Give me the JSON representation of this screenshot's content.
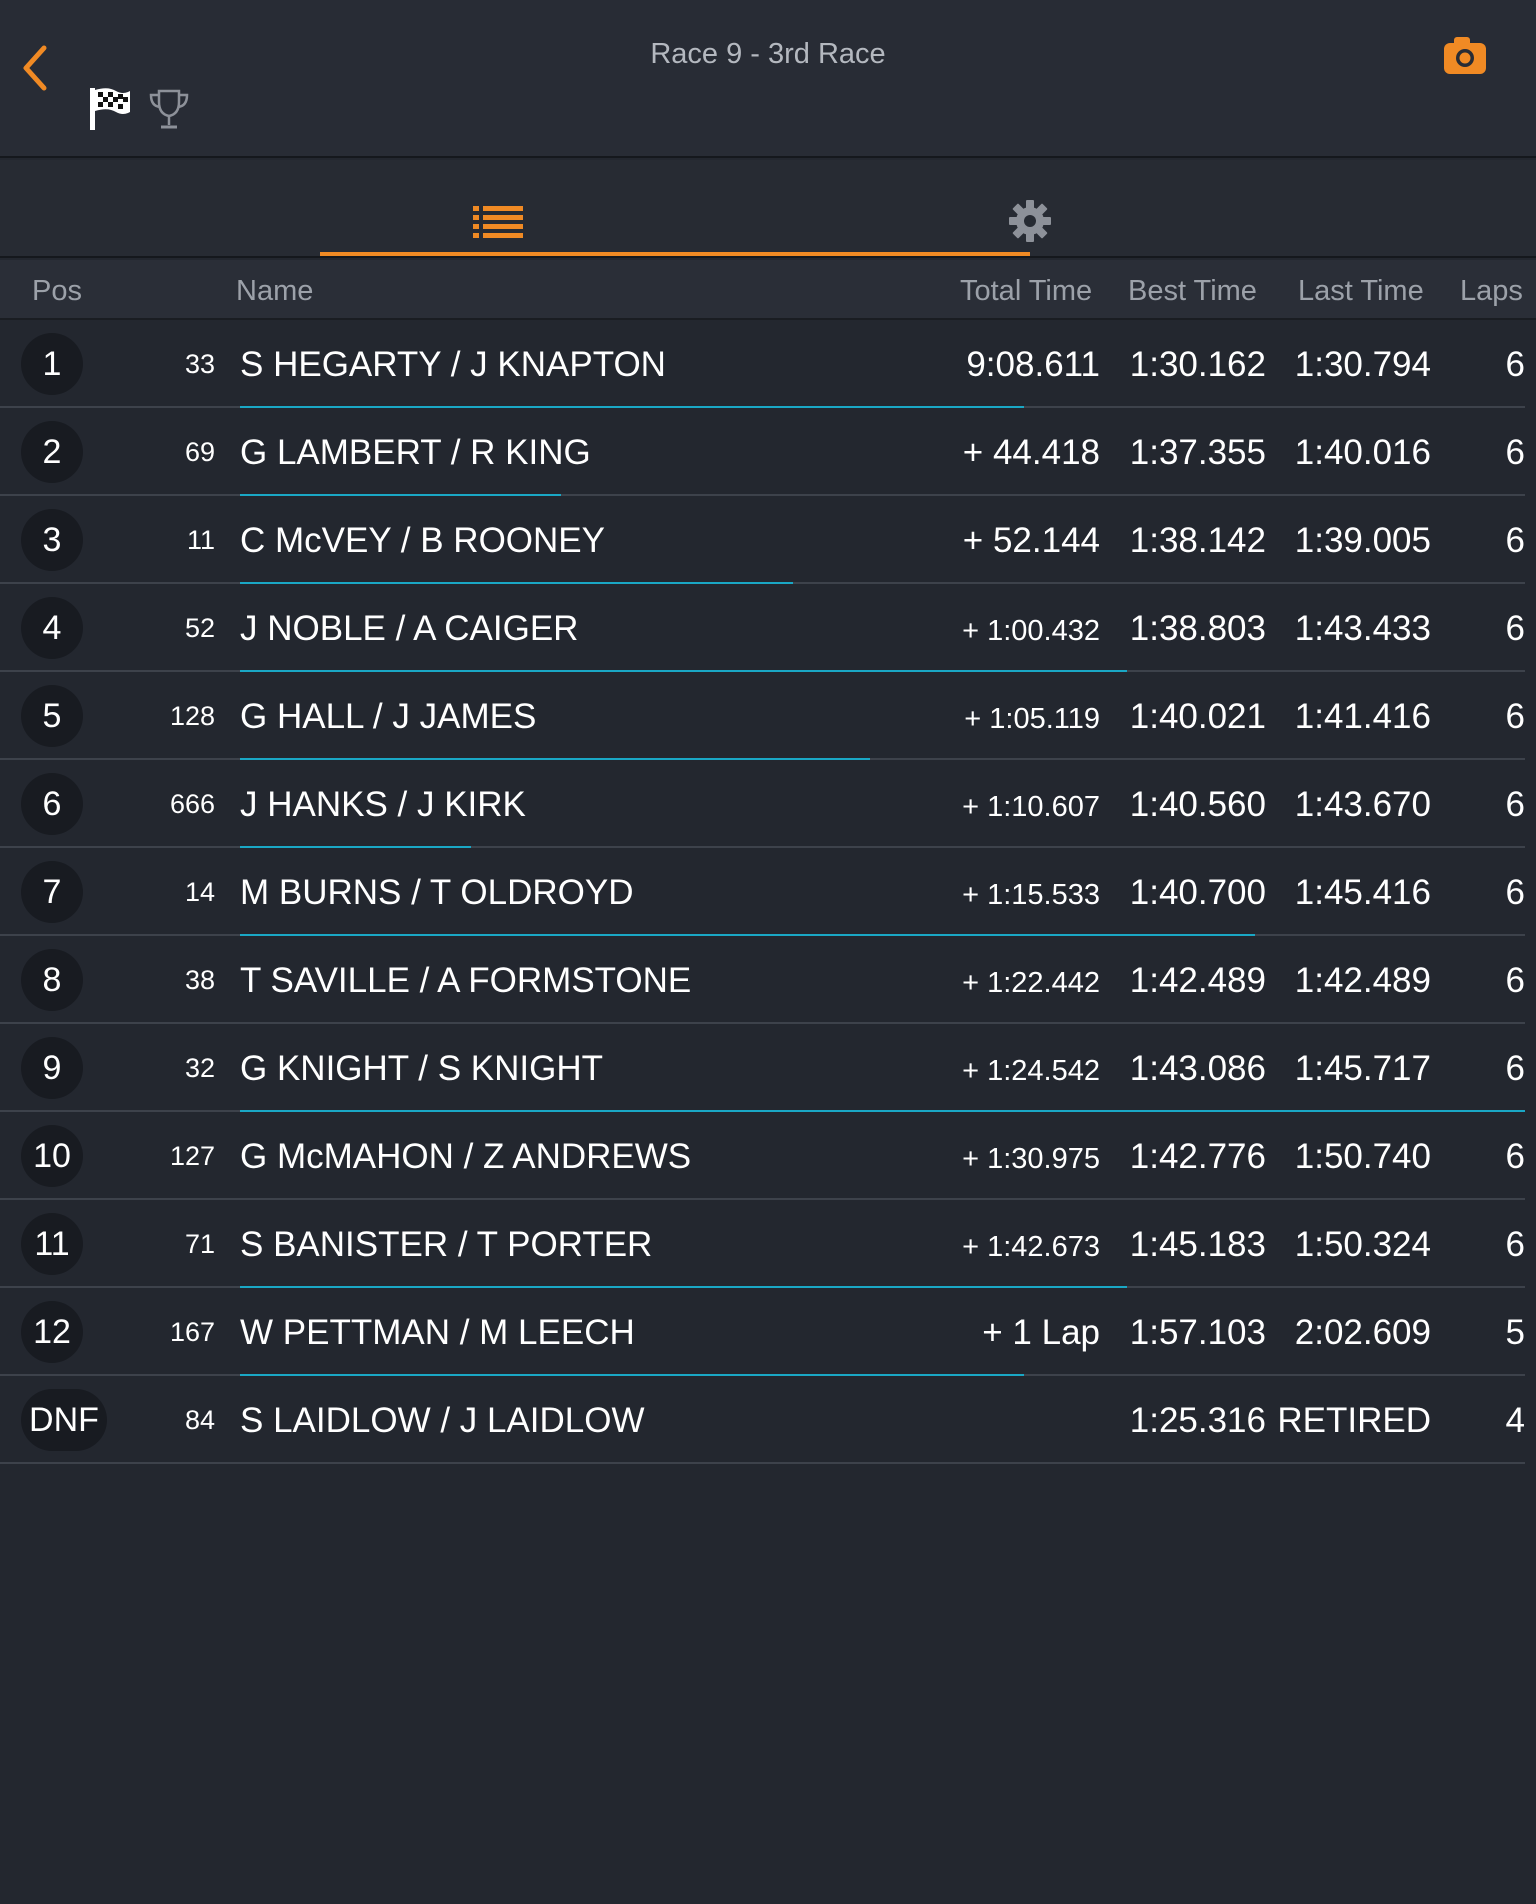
{
  "header": {
    "title": "Race 9 - 3rd Race",
    "accent_color": "#f08a24",
    "icons": [
      "back-chevron-icon",
      "checkered-flag-icon",
      "trophy-icon",
      "camera-icon"
    ]
  },
  "tabs": [
    {
      "icon": "list-icon",
      "active": true
    },
    {
      "icon": "gear-icon",
      "active": false
    }
  ],
  "columns": {
    "pos": "Pos",
    "name": "Name",
    "total": "Total Time",
    "best": "Best Time",
    "last": "Last Time",
    "laps": "Laps"
  },
  "progress_bar_color": "#1aa7c5",
  "results": [
    {
      "pos": "1",
      "number": "33",
      "name": "S HEGARTY / J KNAPTON",
      "total": "9:08.611",
      "best": "1:30.162",
      "last": "1:30.794",
      "laps": "6",
      "bar_fraction": 0.61
    },
    {
      "pos": "2",
      "number": "69",
      "name": "G LAMBERT / R KING",
      "total": "+ 44.418",
      "best": "1:37.355",
      "last": "1:40.016",
      "laps": "6",
      "bar_fraction": 0.25
    },
    {
      "pos": "3",
      "number": "11",
      "name": "C McVEY / B ROONEY",
      "total": "+ 52.144",
      "best": "1:38.142",
      "last": "1:39.005",
      "laps": "6",
      "bar_fraction": 0.43
    },
    {
      "pos": "4",
      "number": "52",
      "name": "J NOBLE / A CAIGER",
      "total": "+ 1:00.432",
      "best": "1:38.803",
      "last": "1:43.433",
      "laps": "6",
      "bar_fraction": 0.69
    },
    {
      "pos": "5",
      "number": "128",
      "name": "G HALL / J JAMES",
      "total": "+ 1:05.119",
      "best": "1:40.021",
      "last": "1:41.416",
      "laps": "6",
      "bar_fraction": 0.49
    },
    {
      "pos": "6",
      "number": "666",
      "name": "J HANKS / J KIRK",
      "total": "+ 1:10.607",
      "best": "1:40.560",
      "last": "1:43.670",
      "laps": "6",
      "bar_fraction": 0.18
    },
    {
      "pos": "7",
      "number": "14",
      "name": "M BURNS / T OLDROYD",
      "total": "+ 1:15.533",
      "best": "1:40.700",
      "last": "1:45.416",
      "laps": "6",
      "bar_fraction": 0.79
    },
    {
      "pos": "8",
      "number": "38",
      "name": "T SAVILLE / A FORMSTONE",
      "total": "+ 1:22.442",
      "best": "1:42.489",
      "last": "1:42.489",
      "laps": "6",
      "bar_fraction": 0.0
    },
    {
      "pos": "9",
      "number": "32",
      "name": "G KNIGHT / S KNIGHT",
      "total": "+ 1:24.542",
      "best": "1:43.086",
      "last": "1:45.717",
      "laps": "6",
      "bar_fraction": 1.0
    },
    {
      "pos": "10",
      "number": "127",
      "name": "G McMAHON / Z ANDREWS",
      "total": "+ 1:30.975",
      "best": "1:42.776",
      "last": "1:50.740",
      "laps": "6",
      "bar_fraction": 0.0
    },
    {
      "pos": "11",
      "number": "71",
      "name": "S BANISTER / T PORTER",
      "total": "+ 1:42.673",
      "best": "1:45.183",
      "last": "1:50.324",
      "laps": "6",
      "bar_fraction": 0.69
    },
    {
      "pos": "12",
      "number": "167",
      "name": "W PETTMAN / M LEECH",
      "total": "+ 1 Lap",
      "best": "1:57.103",
      "last": "2:02.609",
      "laps": "5",
      "bar_fraction": 0.61
    },
    {
      "pos": "DNF",
      "number": "84",
      "name": "S LAIDLOW / J LAIDLOW",
      "total": "",
      "best": "1:25.316",
      "last": "RETIRED",
      "laps": "4",
      "bar_fraction": 0.0
    }
  ]
}
